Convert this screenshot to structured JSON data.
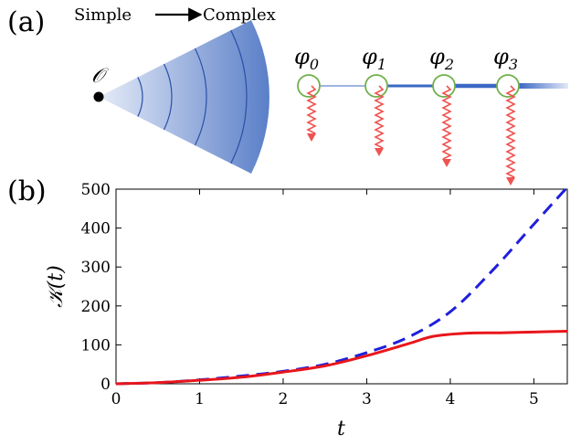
{
  "panel_a": {
    "label": "(a)",
    "simple_label": "Simple",
    "complex_label": "Complex",
    "origin_label": "𝒪",
    "nodes": [
      {
        "label": "φ",
        "sub": "0",
        "drop": 0.35
      },
      {
        "label": "φ",
        "sub": "1",
        "drop": 0.55
      },
      {
        "label": "φ",
        "sub": "2",
        "drop": 0.75
      },
      {
        "label": "φ",
        "sub": "3",
        "drop": 1.0
      }
    ],
    "colors": {
      "wedge_light": "#e6ecf8",
      "wedge_dark": "#5a7fc8",
      "arcs": "#2b4fa8",
      "chain": "#3b68c4",
      "node_ring": "#6fb04a",
      "wavy": "#ef5350"
    }
  },
  "panel_b": {
    "label": "(b)"
  },
  "chart_data": {
    "type": "line",
    "xlabel": "t",
    "ylabel": "𝒦(t)",
    "xlim": [
      0,
      5.4
    ],
    "ylim": [
      0,
      500
    ],
    "xticks": [
      0,
      1,
      2,
      3,
      4,
      5
    ],
    "yticks": [
      0,
      100,
      200,
      300,
      400,
      500
    ],
    "grid": false,
    "series": [
      {
        "color": "#1f1fdc",
        "style": "dashed",
        "x": [
          0,
          0.5,
          1.0,
          1.5,
          2.0,
          2.5,
          3.0,
          3.5,
          4.0,
          4.5,
          5.0,
          5.4
        ],
        "y": [
          0,
          3,
          10,
          20,
          32,
          50,
          80,
          120,
          185,
          290,
          410,
          505
        ]
      },
      {
        "color": "#e8161b",
        "style": "solid",
        "x": [
          0,
          0.5,
          1.0,
          1.5,
          2.0,
          2.5,
          3.0,
          3.5,
          3.8,
          4.2,
          4.6,
          5.0,
          5.4
        ],
        "y": [
          0,
          3,
          9,
          17,
          30,
          46,
          72,
          103,
          122,
          130,
          131,
          133,
          135
        ]
      }
    ]
  }
}
